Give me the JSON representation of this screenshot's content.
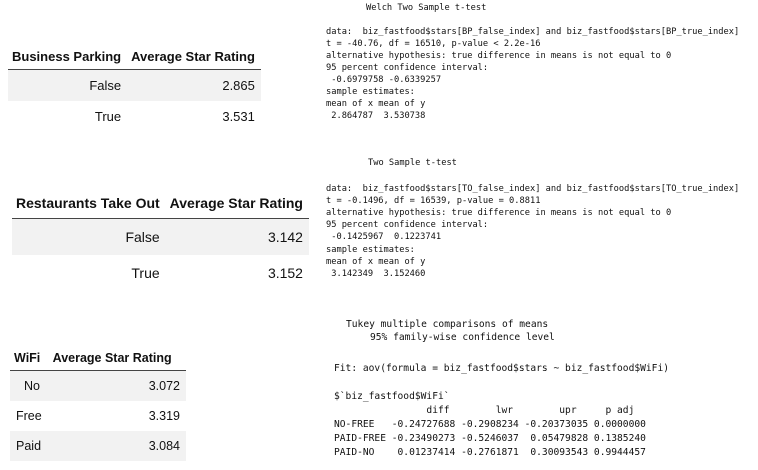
{
  "table_business_parking": {
    "headers": [
      "Business Parking",
      "Average Star Rating"
    ],
    "rows": [
      {
        "label": "False",
        "value": "2.865"
      },
      {
        "label": "True",
        "value": "3.531"
      }
    ]
  },
  "table_take_out": {
    "headers": [
      "Restaurants Take Out",
      "Average Star Rating"
    ],
    "rows": [
      {
        "label": "False",
        "value": "3.142"
      },
      {
        "label": "True",
        "value": "3.152"
      }
    ]
  },
  "table_wifi": {
    "headers": [
      "WiFi",
      "Average Star Rating"
    ],
    "rows": [
      {
        "label": "No",
        "value": "3.072"
      },
      {
        "label": "Free",
        "value": "3.319"
      },
      {
        "label": "Paid",
        "value": "3.084"
      }
    ]
  },
  "welch_test": {
    "title": "Welch Two Sample t-test",
    "lines": [
      "data:  biz_fastfood$stars[BP_false_index] and biz_fastfood$stars[BP_true_index]",
      "t = -40.76, df = 16510, p-value < 2.2e-16",
      "alternative hypothesis: true difference in means is not equal to 0",
      "95 percent confidence interval:",
      " -0.6979758 -0.6339257",
      "sample estimates:",
      "mean of x mean of y",
      " 2.864787  3.530738"
    ]
  },
  "two_sample_test": {
    "title": "Two Sample t-test",
    "lines": [
      "data:  biz_fastfood$stars[TO_false_index] and biz_fastfood$stars[TO_true_index]",
      "t = -0.1496, df = 16539, p-value = 0.8811",
      "alternative hypothesis: true difference in means is not equal to 0",
      "95 percent confidence interval:",
      " -0.1425967  0.1223741",
      "sample estimates:",
      "mean of x mean of y",
      " 3.142349  3.152460"
    ]
  },
  "tukey": {
    "title_line1": "Tukey multiple comparisons of means",
    "title_line2": "95% family-wise confidence level",
    "fit_line": "Fit: aov(formula = biz_fastfood$stars ~ biz_fastfood$WiFi)",
    "var_line": "$`biz_fastfood$WiFi`",
    "header": "                diff        lwr        upr     p adj",
    "rows": [
      "NO-FREE   -0.24727688 -0.2908234 -0.20373035 0.0000000",
      "PAID-FREE -0.23490273 -0.5246037  0.05479828 0.1385240",
      "PAID-NO    0.01237414 -0.2761871  0.30093543 0.9944457"
    ]
  }
}
